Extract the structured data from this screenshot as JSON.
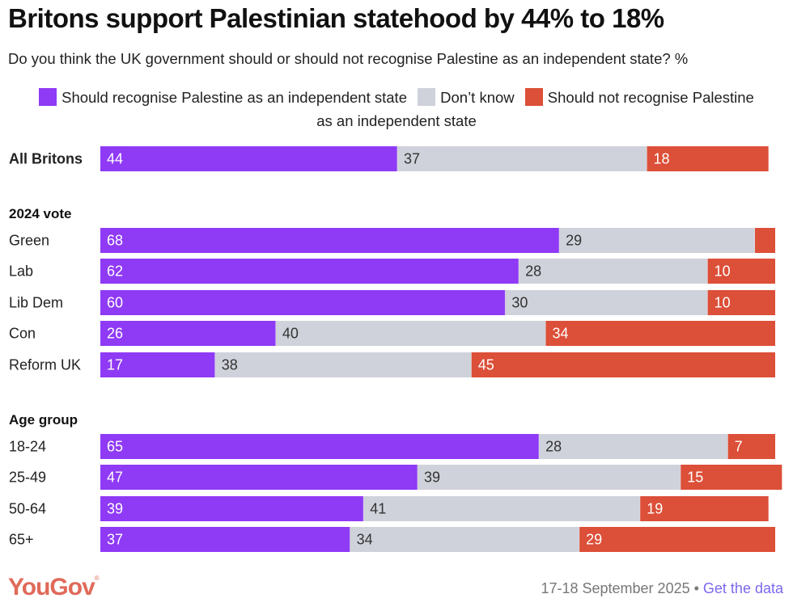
{
  "chart_data": {
    "type": "bar",
    "orientation": "horizontal",
    "stacked": true,
    "title": "Britons support Palestinian statehood by 44% to 18%",
    "subtitle": "Do you think the UK government should or should not recognise Palestine as an independent state? %",
    "legend_position": "top",
    "series_meta": [
      {
        "name": "Should recognise Palestine as an independent state",
        "color": "#8f3af5",
        "label_color": "#ffffff"
      },
      {
        "name": "Don’t know",
        "color": "#cfd2da",
        "label_color": "#333333"
      },
      {
        "name": "Should not recognise Palestine as an independent state",
        "color": "#dc4f38",
        "label_color": "#ffffff"
      }
    ],
    "legend_labels": [
      "Should recognise Palestine as an independent state",
      "Don’t know",
      "Should not recognise Palestine",
      "as an independent state"
    ],
    "groups": [
      {
        "heading": "",
        "rows": [
          {
            "label": "All Britons",
            "bold": true,
            "values": [
              44,
              37,
              18
            ],
            "labels": [
              "44",
              "37",
              "18"
            ]
          }
        ]
      },
      {
        "heading": "2024 vote",
        "rows": [
          {
            "label": "Green",
            "values": [
              68,
              29,
              3
            ],
            "labels": [
              "68",
              "29",
              ""
            ]
          },
          {
            "label": "Lab",
            "values": [
              62,
              28,
              10
            ],
            "labels": [
              "62",
              "28",
              "10"
            ]
          },
          {
            "label": "Lib Dem",
            "values": [
              60,
              30,
              10
            ],
            "labels": [
              "60",
              "30",
              "10"
            ]
          },
          {
            "label": "Con",
            "values": [
              26,
              40,
              34
            ],
            "labels": [
              "26",
              "40",
              "34"
            ]
          },
          {
            "label": "Reform UK",
            "values": [
              17,
              38,
              45
            ],
            "labels": [
              "17",
              "38",
              "45"
            ]
          }
        ]
      },
      {
        "heading": "Age group",
        "rows": [
          {
            "label": "18-24",
            "values": [
              65,
              28,
              7
            ],
            "labels": [
              "65",
              "28",
              "7"
            ]
          },
          {
            "label": "25-49",
            "values": [
              47,
              39,
              15
            ],
            "labels": [
              "47",
              "39",
              "15"
            ]
          },
          {
            "label": "50-64",
            "values": [
              39,
              41,
              19
            ],
            "labels": [
              "39",
              "41",
              "19"
            ]
          },
          {
            "label": "65+",
            "values": [
              37,
              34,
              29
            ],
            "labels": [
              "37",
              "34",
              "29"
            ]
          }
        ]
      }
    ],
    "xlim": [
      0,
      100
    ],
    "grid": false
  },
  "footer": {
    "brand": "YouGov",
    "brand_mark": "®",
    "date": "17-18 September 2025",
    "separator": " • ",
    "link": "Get the data"
  }
}
